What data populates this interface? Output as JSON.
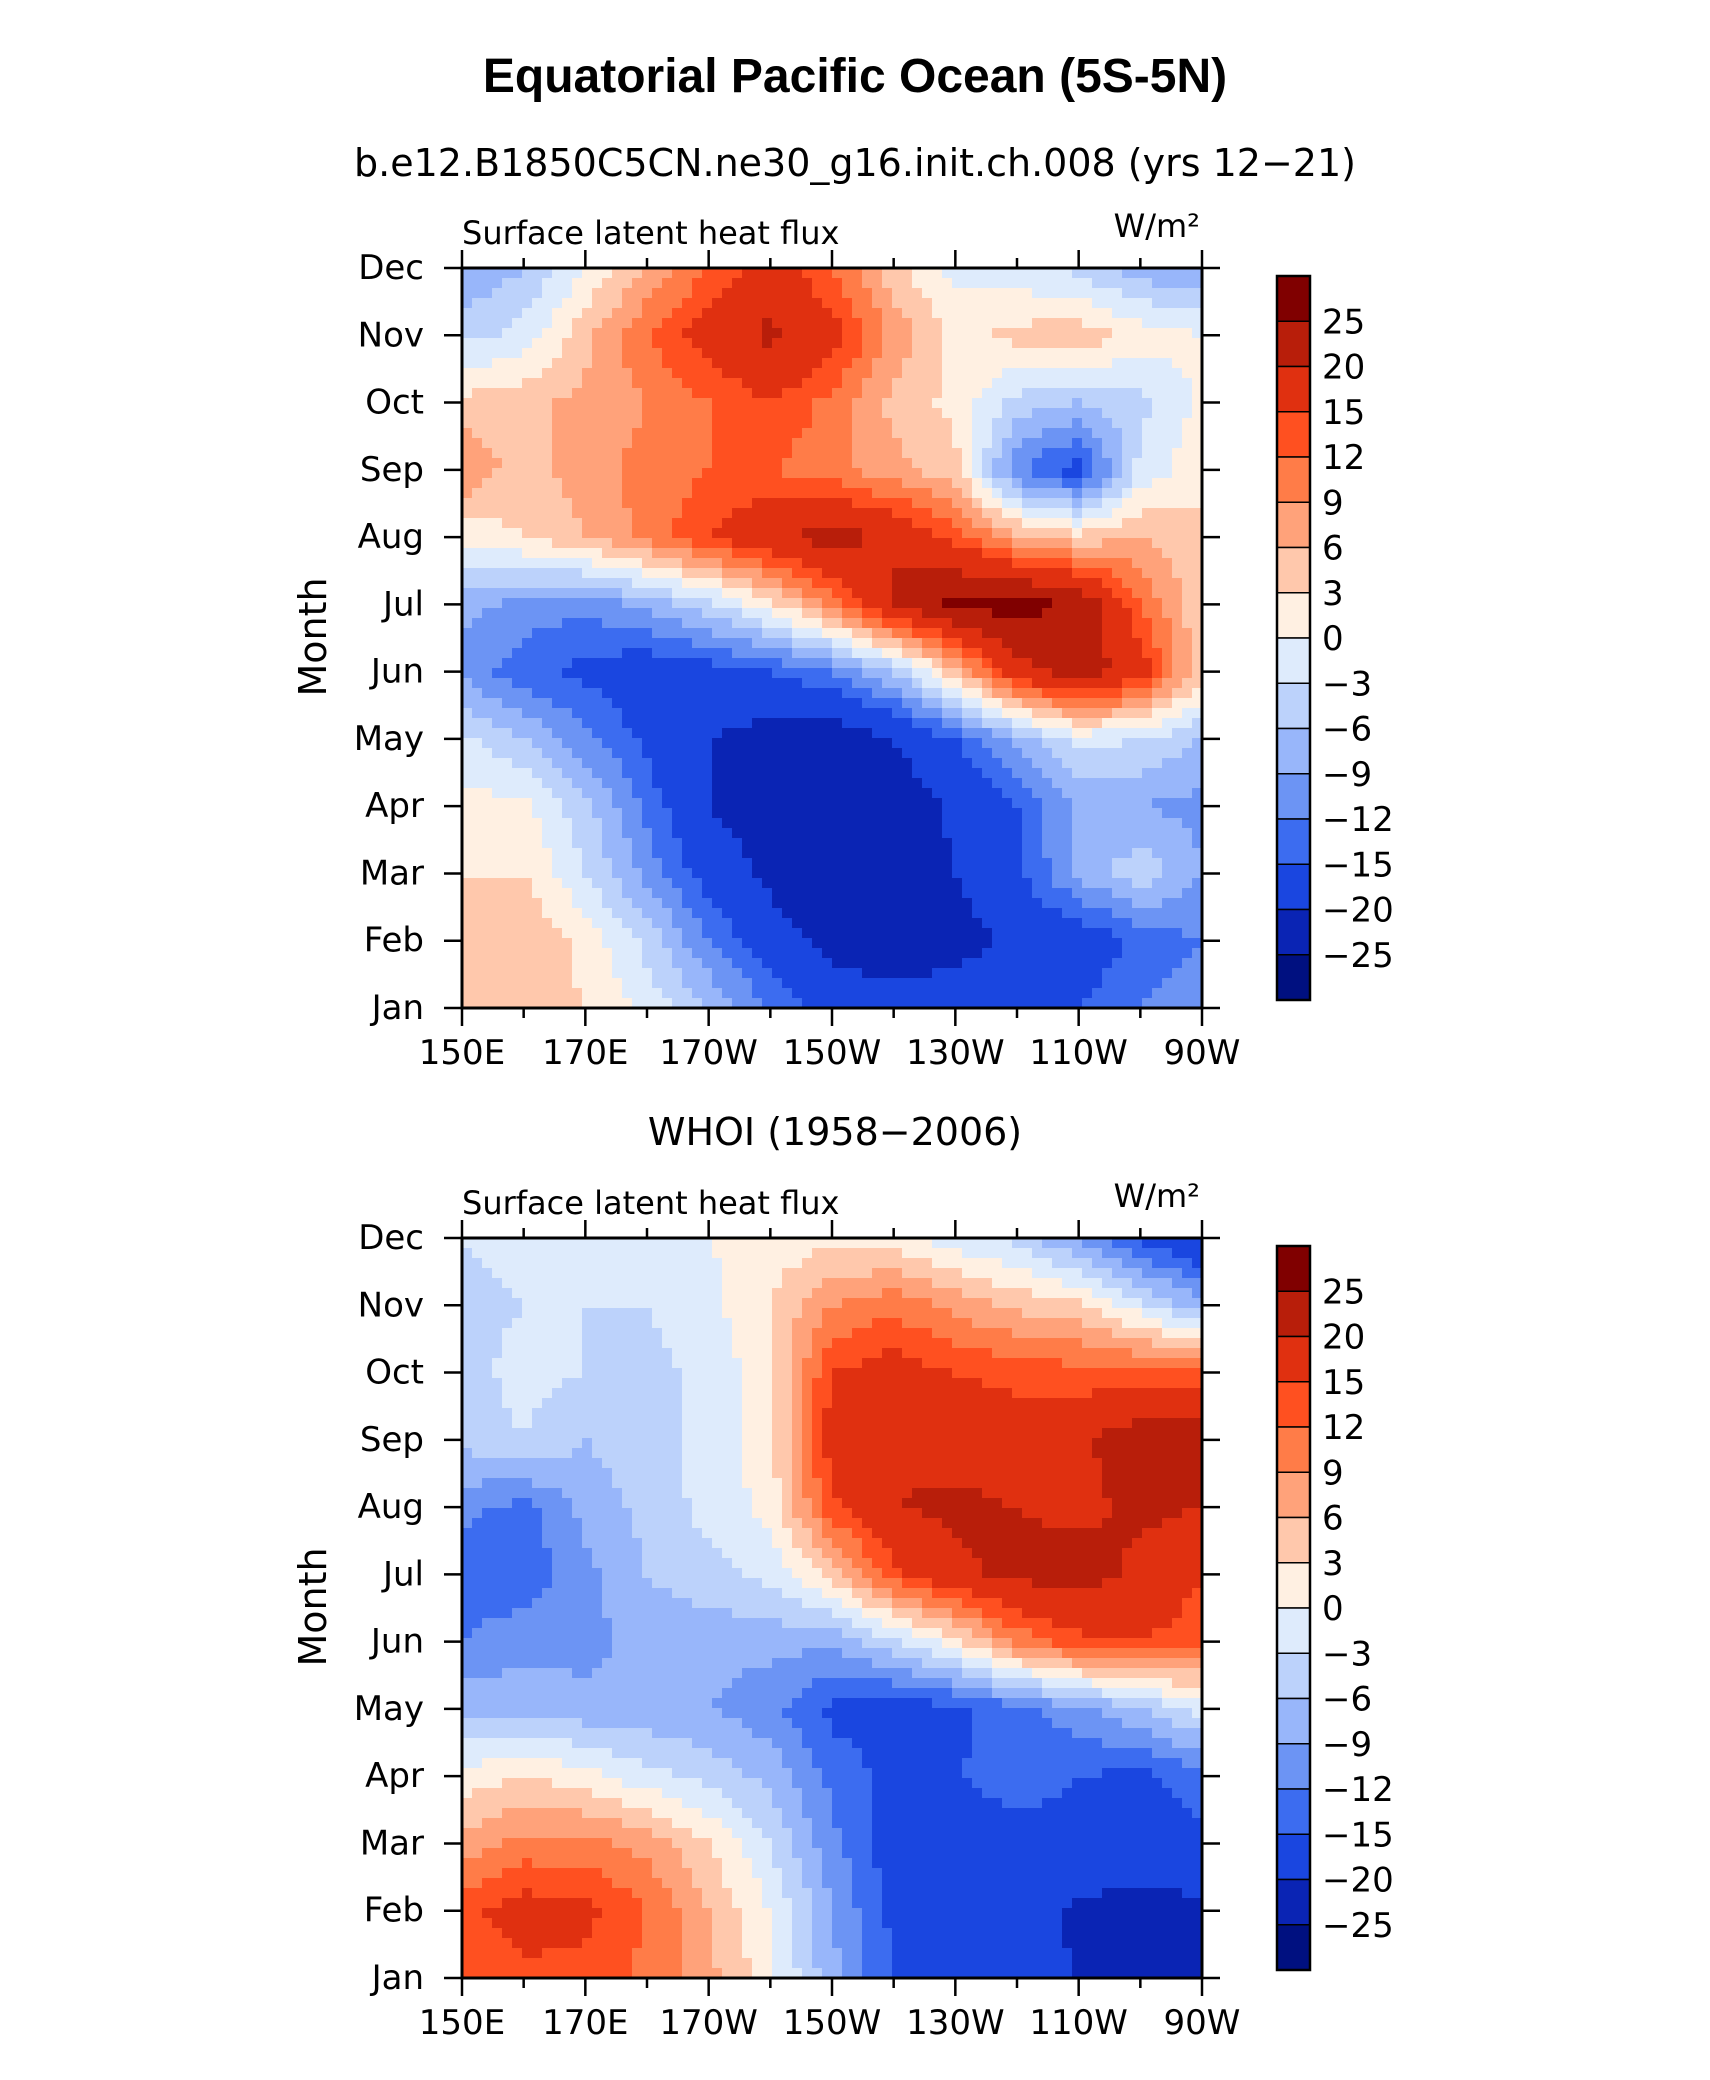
{
  "figure": {
    "title": "Equatorial Pacific Ocean (5S-5N)"
  },
  "colorbar": {
    "labels": [
      "25",
      "20",
      "15",
      "12",
      "9",
      "6",
      "3",
      "0",
      "−3",
      "−6",
      "−9",
      "−12",
      "−15",
      "−20",
      "−25"
    ],
    "colors": [
      "#800000",
      "#b81e0a",
      "#e03010",
      "#ff5020",
      "#ff7c48",
      "#ffa27a",
      "#ffc8ac",
      "#fff0e2",
      "#deebfc",
      "#bcd2fb",
      "#98b6fa",
      "#6c94f4",
      "#3c6cf0",
      "#1a46e0",
      "#0a24b4",
      "#001080"
    ]
  },
  "chart_data": [
    {
      "type": "heatmap",
      "title": "b.e12.B1850C5CN.ne30_g16.init.ch.008 (yrs 12−21)",
      "subtitle": "Surface latent heat flux",
      "units": "W/m²",
      "ylabel": "Month",
      "xlabel": "",
      "x_ticks": [
        "150E",
        "170E",
        "170W",
        "150W",
        "130W",
        "110W",
        "90W"
      ],
      "x_range": [
        150,
        270
      ],
      "y_ticks": [
        "Jan",
        "Feb",
        "Mar",
        "Apr",
        "May",
        "Jun",
        "Jul",
        "Aug",
        "Sep",
        "Oct",
        "Nov",
        "Dec"
      ],
      "levels": [
        -25,
        -20,
        -15,
        -12,
        -9,
        -6,
        -3,
        0,
        3,
        6,
        9,
        12,
        15,
        20,
        25
      ],
      "longitudes": [
        150,
        160,
        170,
        180,
        190,
        200,
        210,
        220,
        230,
        240,
        250,
        260,
        270
      ],
      "values": [
        [
          4,
          5,
          3,
          -1,
          -6,
          -12,
          -18,
          -18,
          -17,
          -16,
          -15,
          -12,
          -10
        ],
        [
          5,
          6,
          2,
          -4,
          -12,
          -18,
          -21,
          -23,
          -22,
          -19,
          -18,
          -14,
          -12
        ],
        [
          3,
          3,
          -3,
          -10,
          -17,
          -21,
          -24,
          -24,
          -20,
          -16,
          -8,
          -4,
          -9
        ],
        [
          1,
          1,
          -5,
          -13,
          -20,
          -23,
          -24,
          -23,
          -19,
          -15,
          -8,
          -9,
          -10
        ],
        [
          -2,
          -6,
          -11,
          -16,
          -20,
          -22,
          -23,
          -20,
          -15,
          -8,
          -2,
          -3,
          -6
        ],
        [
          -10,
          -14,
          -16,
          -18,
          -17,
          -15,
          -12,
          -6,
          5,
          18,
          23,
          17,
          4
        ],
        [
          -8,
          -10,
          -11,
          -8,
          -4,
          2,
          10,
          21,
          26,
          27,
          24,
          12,
          3
        ],
        [
          1,
          3,
          6,
          10,
          15,
          19,
          22,
          19,
          14,
          7,
          4,
          6,
          4
        ],
        [
          9,
          4,
          8,
          10,
          12,
          12,
          10,
          7,
          4,
          -12,
          -17,
          -2,
          2
        ],
        [
          4,
          5,
          7,
          9,
          12,
          15,
          11,
          5,
          2,
          -4,
          -6,
          -4,
          1
        ],
        [
          -4,
          -2,
          5,
          12,
          17,
          21,
          17,
          8,
          2,
          4,
          5,
          2,
          0
        ],
        [
          -9,
          -6,
          0,
          6,
          12,
          17,
          12,
          4,
          -1,
          -2,
          -4,
          -8,
          -9
        ]
      ]
    },
    {
      "type": "heatmap",
      "title": "WHOI (1958−2006)",
      "subtitle": "Surface latent heat flux",
      "units": "W/m²",
      "ylabel": "Month",
      "xlabel": "",
      "x_ticks": [
        "150E",
        "170E",
        "170W",
        "150W",
        "130W",
        "110W",
        "90W"
      ],
      "x_range": [
        150,
        270
      ],
      "y_ticks": [
        "Jan",
        "Feb",
        "Mar",
        "Apr",
        "May",
        "Jun",
        "Jul",
        "Aug",
        "Sep",
        "Oct",
        "Nov",
        "Dec"
      ],
      "levels": [
        -25,
        -20,
        -15,
        -12,
        -9,
        -6,
        -3,
        0,
        3,
        6,
        9,
        12,
        15,
        20,
        25
      ],
      "longitudes": [
        150,
        160,
        170,
        180,
        190,
        200,
        210,
        220,
        230,
        240,
        250,
        260,
        270
      ],
      "values": [
        [
          12,
          14,
          14,
          11,
          7,
          1,
          -8,
          -15,
          -17,
          -18,
          -20,
          -22,
          -24
        ],
        [
          14,
          17,
          16,
          12,
          6,
          0,
          -9,
          -16,
          -18,
          -18,
          -21,
          -22,
          -21
        ],
        [
          7,
          10,
          10,
          8,
          3,
          -3,
          -11,
          -17,
          -17,
          -16,
          -16,
          -17,
          -16
        ],
        [
          1,
          3,
          1,
          -2,
          -4,
          -7,
          -13,
          -16,
          -15,
          -14,
          -15,
          -16,
          -13
        ],
        [
          -7,
          -7,
          -8,
          -8,
          -9,
          -11,
          -16,
          -17,
          -16,
          -13,
          -10,
          -6,
          -2
        ],
        [
          -12,
          -10,
          -10,
          -8,
          -8,
          -8,
          -8,
          -4,
          2,
          10,
          14,
          15,
          13
        ],
        [
          -14,
          -14,
          -10,
          -6,
          -4,
          -2,
          4,
          14,
          19,
          21,
          22,
          19,
          15
        ],
        [
          -11,
          -13,
          -8,
          -5,
          -2,
          1,
          14,
          20,
          21,
          20,
          19,
          21,
          20
        ],
        [
          -5,
          -3,
          -6,
          -4,
          -2,
          2,
          17,
          19,
          18,
          17,
          19,
          23,
          25
        ],
        [
          -4,
          -2,
          -3,
          -4,
          -2,
          2,
          15,
          17,
          15,
          14,
          13,
          13,
          12
        ],
        [
          -4,
          -3,
          -3,
          -3,
          -1,
          3,
          9,
          11,
          8,
          5,
          4,
          -2,
          -8
        ],
        [
          -3,
          -2,
          -1,
          -1,
          0,
          1,
          2,
          1,
          -2,
          -4,
          -10,
          -16,
          -20
        ]
      ]
    }
  ]
}
